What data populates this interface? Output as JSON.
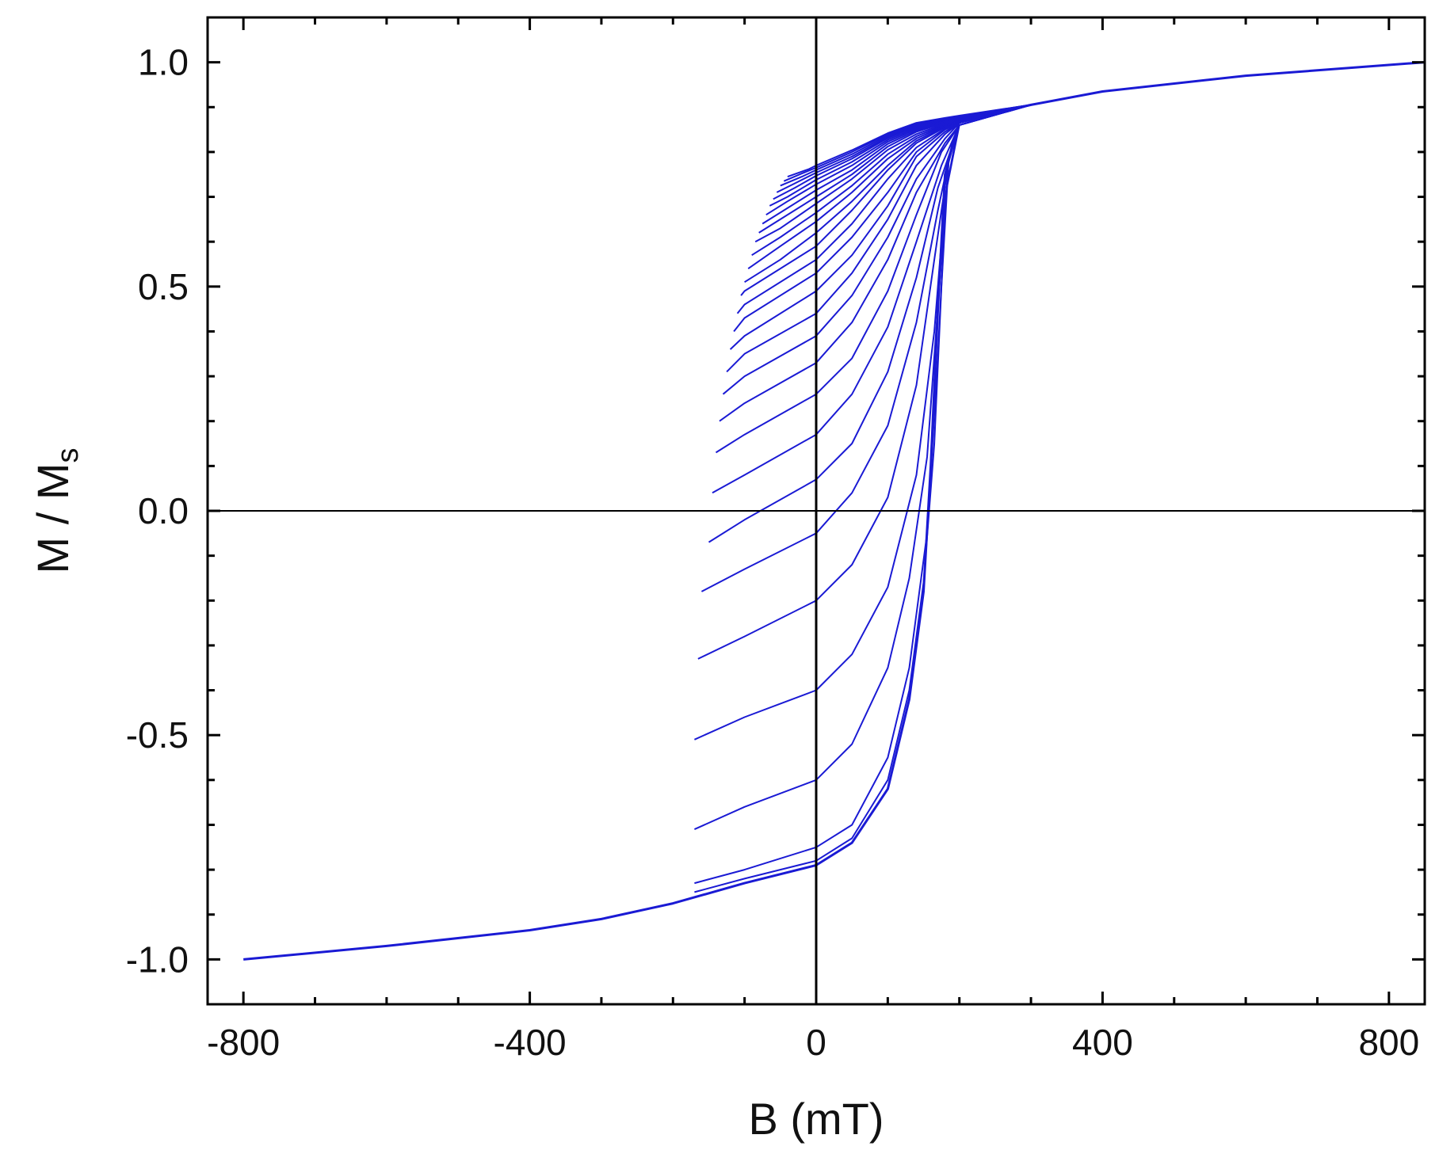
{
  "chart_data": {
    "type": "line",
    "title": "",
    "xlabel": "B (mT)",
    "ylabel": {
      "main": "M / M",
      "subscript": "s"
    },
    "xlim": [
      -850,
      850
    ],
    "ylim": [
      -1.1,
      1.1
    ],
    "x_ticks": [
      -800,
      -400,
      0,
      400,
      800
    ],
    "x_tick_labels": [
      "-800",
      "-400",
      "0",
      "400",
      "800"
    ],
    "y_ticks": [
      -1.0,
      -0.5,
      0.0,
      0.5,
      1.0
    ],
    "y_tick_labels": [
      "-1.0",
      "-0.5",
      "0.0",
      "0.5",
      "1.0"
    ],
    "grid": false,
    "legend": "none",
    "reference_lines": {
      "x": 0,
      "y": 0
    },
    "line_color": "#1a1ad4",
    "frame_color": "#000000",
    "description_of_series": "First-order reversal curves (FORCs): a set of curves starting from reversal fields between about -170 mT and +200 mT, each sweeping up to +850 mT; the major branch saturates to ±1.0.",
    "series": [
      {
        "values": [
          [
            -800,
            -1.0
          ],
          [
            -600,
            -0.97
          ],
          [
            -400,
            -0.935
          ],
          [
            -300,
            -0.91
          ],
          [
            -200,
            -0.875
          ],
          [
            -100,
            -0.83
          ],
          [
            0,
            -0.79
          ],
          [
            50,
            -0.74
          ],
          [
            100,
            -0.62
          ],
          [
            130,
            -0.42
          ],
          [
            150,
            -0.18
          ],
          [
            160,
            0.1
          ],
          [
            170,
            0.45
          ],
          [
            180,
            0.75
          ],
          [
            200,
            0.87
          ],
          [
            300,
            0.905
          ],
          [
            400,
            0.935
          ],
          [
            600,
            0.97
          ],
          [
            850,
            1.0
          ]
        ]
      },
      {
        "values": [
          [
            -170,
            -0.85
          ],
          [
            -100,
            -0.82
          ],
          [
            0,
            -0.78
          ],
          [
            50,
            -0.73
          ],
          [
            100,
            -0.6
          ],
          [
            130,
            -0.4
          ],
          [
            150,
            -0.16
          ],
          [
            165,
            0.15
          ],
          [
            175,
            0.5
          ],
          [
            185,
            0.78
          ],
          [
            200,
            0.87
          ],
          [
            300,
            0.905
          ]
        ]
      },
      {
        "values": [
          [
            -170,
            -0.83
          ],
          [
            -100,
            -0.8
          ],
          [
            0,
            -0.75
          ],
          [
            50,
            -0.7
          ],
          [
            100,
            -0.55
          ],
          [
            130,
            -0.35
          ],
          [
            155,
            -0.05
          ],
          [
            170,
            0.35
          ],
          [
            182,
            0.72
          ],
          [
            200,
            0.87
          ],
          [
            300,
            0.905
          ]
        ]
      },
      {
        "values": [
          [
            -170,
            -0.71
          ],
          [
            -100,
            -0.66
          ],
          [
            0,
            -0.6
          ],
          [
            50,
            -0.52
          ],
          [
            100,
            -0.35
          ],
          [
            130,
            -0.15
          ],
          [
            155,
            0.12
          ],
          [
            172,
            0.5
          ],
          [
            185,
            0.78
          ],
          [
            200,
            0.87
          ],
          [
            300,
            0.905
          ]
        ]
      },
      {
        "values": [
          [
            -170,
            -0.51
          ],
          [
            -100,
            -0.46
          ],
          [
            0,
            -0.4
          ],
          [
            50,
            -0.32
          ],
          [
            100,
            -0.17
          ],
          [
            140,
            0.08
          ],
          [
            165,
            0.4
          ],
          [
            180,
            0.7
          ],
          [
            200,
            0.86
          ],
          [
            300,
            0.905
          ]
        ]
      },
      {
        "values": [
          [
            -165,
            -0.33
          ],
          [
            -100,
            -0.28
          ],
          [
            0,
            -0.2
          ],
          [
            50,
            -0.12
          ],
          [
            100,
            0.03
          ],
          [
            140,
            0.28
          ],
          [
            165,
            0.56
          ],
          [
            185,
            0.78
          ],
          [
            200,
            0.86
          ],
          [
            300,
            0.905
          ]
        ]
      },
      {
        "values": [
          [
            -160,
            -0.18
          ],
          [
            -100,
            -0.13
          ],
          [
            0,
            -0.05
          ],
          [
            50,
            0.04
          ],
          [
            100,
            0.19
          ],
          [
            140,
            0.42
          ],
          [
            170,
            0.67
          ],
          [
            190,
            0.82
          ],
          [
            200,
            0.86
          ],
          [
            300,
            0.905
          ]
        ]
      },
      {
        "values": [
          [
            -150,
            -0.07
          ],
          [
            -100,
            -0.02
          ],
          [
            0,
            0.07
          ],
          [
            50,
            0.15
          ],
          [
            100,
            0.31
          ],
          [
            140,
            0.52
          ],
          [
            170,
            0.72
          ],
          [
            200,
            0.86
          ],
          [
            300,
            0.905
          ]
        ]
      },
      {
        "values": [
          [
            -145,
            0.04
          ],
          [
            -100,
            0.08
          ],
          [
            0,
            0.17
          ],
          [
            50,
            0.26
          ],
          [
            100,
            0.41
          ],
          [
            140,
            0.6
          ],
          [
            175,
            0.77
          ],
          [
            200,
            0.86
          ],
          [
            300,
            0.905
          ]
        ]
      },
      {
        "values": [
          [
            -140,
            0.13
          ],
          [
            -100,
            0.17
          ],
          [
            0,
            0.26
          ],
          [
            50,
            0.34
          ],
          [
            100,
            0.49
          ],
          [
            140,
            0.66
          ],
          [
            175,
            0.8
          ],
          [
            200,
            0.86
          ],
          [
            300,
            0.905
          ]
        ]
      },
      {
        "values": [
          [
            -135,
            0.2
          ],
          [
            -100,
            0.24
          ],
          [
            0,
            0.33
          ],
          [
            50,
            0.42
          ],
          [
            100,
            0.56
          ],
          [
            140,
            0.71
          ],
          [
            180,
            0.82
          ],
          [
            200,
            0.86
          ],
          [
            300,
            0.905
          ]
        ]
      },
      {
        "values": [
          [
            -130,
            0.26
          ],
          [
            -100,
            0.3
          ],
          [
            0,
            0.39
          ],
          [
            50,
            0.48
          ],
          [
            100,
            0.61
          ],
          [
            140,
            0.74
          ],
          [
            180,
            0.83
          ],
          [
            200,
            0.865
          ],
          [
            300,
            0.905
          ]
        ]
      },
      {
        "values": [
          [
            -125,
            0.31
          ],
          [
            -100,
            0.35
          ],
          [
            0,
            0.44
          ],
          [
            50,
            0.53
          ],
          [
            100,
            0.65
          ],
          [
            140,
            0.77
          ],
          [
            180,
            0.84
          ],
          [
            200,
            0.865
          ],
          [
            300,
            0.905
          ]
        ]
      },
      {
        "values": [
          [
            -120,
            0.36
          ],
          [
            -100,
            0.39
          ],
          [
            0,
            0.49
          ],
          [
            50,
            0.57
          ],
          [
            100,
            0.68
          ],
          [
            140,
            0.79
          ],
          [
            180,
            0.845
          ],
          [
            200,
            0.865
          ],
          [
            300,
            0.905
          ]
        ]
      },
      {
        "values": [
          [
            -115,
            0.4
          ],
          [
            -100,
            0.43
          ],
          [
            0,
            0.53
          ],
          [
            50,
            0.61
          ],
          [
            100,
            0.71
          ],
          [
            140,
            0.8
          ],
          [
            180,
            0.85
          ],
          [
            200,
            0.865
          ],
          [
            300,
            0.905
          ]
        ]
      },
      {
        "values": [
          [
            -110,
            0.44
          ],
          [
            -100,
            0.46
          ],
          [
            0,
            0.56
          ],
          [
            50,
            0.64
          ],
          [
            100,
            0.74
          ],
          [
            140,
            0.81
          ],
          [
            180,
            0.852
          ],
          [
            200,
            0.867
          ],
          [
            300,
            0.905
          ]
        ]
      },
      {
        "values": [
          [
            -105,
            0.48
          ],
          [
            -100,
            0.49
          ],
          [
            0,
            0.59
          ],
          [
            50,
            0.67
          ],
          [
            100,
            0.76
          ],
          [
            140,
            0.82
          ],
          [
            180,
            0.855
          ],
          [
            200,
            0.868
          ],
          [
            300,
            0.905
          ]
        ]
      },
      {
        "values": [
          [
            -100,
            0.51
          ],
          [
            -50,
            0.56
          ],
          [
            0,
            0.62
          ],
          [
            50,
            0.69
          ],
          [
            100,
            0.77
          ],
          [
            140,
            0.825
          ],
          [
            180,
            0.857
          ],
          [
            200,
            0.869
          ],
          [
            300,
            0.905
          ]
        ]
      },
      {
        "values": [
          [
            -95,
            0.54
          ],
          [
            -50,
            0.59
          ],
          [
            0,
            0.645
          ],
          [
            50,
            0.71
          ],
          [
            100,
            0.785
          ],
          [
            140,
            0.83
          ],
          [
            180,
            0.859
          ],
          [
            200,
            0.87
          ],
          [
            300,
            0.905
          ]
        ]
      },
      {
        "values": [
          [
            -90,
            0.57
          ],
          [
            -50,
            0.61
          ],
          [
            0,
            0.665
          ],
          [
            50,
            0.725
          ],
          [
            100,
            0.795
          ],
          [
            140,
            0.835
          ],
          [
            180,
            0.861
          ],
          [
            200,
            0.871
          ],
          [
            300,
            0.905
          ]
        ]
      },
      {
        "values": [
          [
            -85,
            0.6
          ],
          [
            -50,
            0.63
          ],
          [
            0,
            0.685
          ],
          [
            50,
            0.74
          ],
          [
            100,
            0.805
          ],
          [
            140,
            0.84
          ],
          [
            180,
            0.863
          ],
          [
            200,
            0.872
          ],
          [
            300,
            0.905
          ]
        ]
      },
      {
        "values": [
          [
            -80,
            0.62
          ],
          [
            -50,
            0.65
          ],
          [
            0,
            0.7
          ],
          [
            50,
            0.75
          ],
          [
            100,
            0.812
          ],
          [
            140,
            0.845
          ],
          [
            180,
            0.865
          ],
          [
            200,
            0.873
          ],
          [
            300,
            0.905
          ]
        ]
      },
      {
        "values": [
          [
            -75,
            0.64
          ],
          [
            -50,
            0.665
          ],
          [
            0,
            0.715
          ],
          [
            50,
            0.76
          ],
          [
            100,
            0.818
          ],
          [
            140,
            0.848
          ],
          [
            180,
            0.867
          ],
          [
            200,
            0.874
          ],
          [
            300,
            0.905
          ]
        ]
      },
      {
        "values": [
          [
            -70,
            0.66
          ],
          [
            -40,
            0.69
          ],
          [
            0,
            0.728
          ],
          [
            50,
            0.77
          ],
          [
            100,
            0.823
          ],
          [
            140,
            0.851
          ],
          [
            180,
            0.869
          ],
          [
            200,
            0.875
          ],
          [
            300,
            0.905
          ]
        ]
      },
      {
        "values": [
          [
            -65,
            0.68
          ],
          [
            -40,
            0.7
          ],
          [
            0,
            0.738
          ],
          [
            50,
            0.778
          ],
          [
            100,
            0.827
          ],
          [
            140,
            0.854
          ],
          [
            180,
            0.871
          ],
          [
            200,
            0.876
          ],
          [
            300,
            0.905
          ]
        ]
      },
      {
        "values": [
          [
            -60,
            0.695
          ],
          [
            -30,
            0.72
          ],
          [
            0,
            0.747
          ],
          [
            50,
            0.785
          ],
          [
            100,
            0.831
          ],
          [
            140,
            0.857
          ],
          [
            180,
            0.872
          ],
          [
            200,
            0.877
          ],
          [
            300,
            0.905
          ]
        ]
      },
      {
        "values": [
          [
            -55,
            0.71
          ],
          [
            -30,
            0.73
          ],
          [
            0,
            0.754
          ],
          [
            50,
            0.79
          ],
          [
            100,
            0.834
          ],
          [
            140,
            0.859
          ],
          [
            180,
            0.873
          ],
          [
            200,
            0.878
          ],
          [
            300,
            0.905
          ]
        ]
      },
      {
        "values": [
          [
            -50,
            0.725
          ],
          [
            -20,
            0.745
          ],
          [
            0,
            0.76
          ],
          [
            50,
            0.795
          ],
          [
            100,
            0.837
          ],
          [
            140,
            0.861
          ],
          [
            180,
            0.874
          ],
          [
            200,
            0.879
          ],
          [
            300,
            0.905
          ]
        ]
      },
      {
        "values": [
          [
            -45,
            0.735
          ],
          [
            -20,
            0.752
          ],
          [
            0,
            0.765
          ],
          [
            50,
            0.8
          ],
          [
            100,
            0.84
          ],
          [
            140,
            0.863
          ],
          [
            180,
            0.875
          ],
          [
            200,
            0.88
          ],
          [
            300,
            0.905
          ]
        ]
      },
      {
        "values": [
          [
            -40,
            0.745
          ],
          [
            -10,
            0.762
          ],
          [
            0,
            0.77
          ],
          [
            50,
            0.804
          ],
          [
            100,
            0.842
          ],
          [
            140,
            0.865
          ],
          [
            180,
            0.876
          ],
          [
            200,
            0.881
          ],
          [
            300,
            0.905
          ]
        ]
      }
    ]
  }
}
